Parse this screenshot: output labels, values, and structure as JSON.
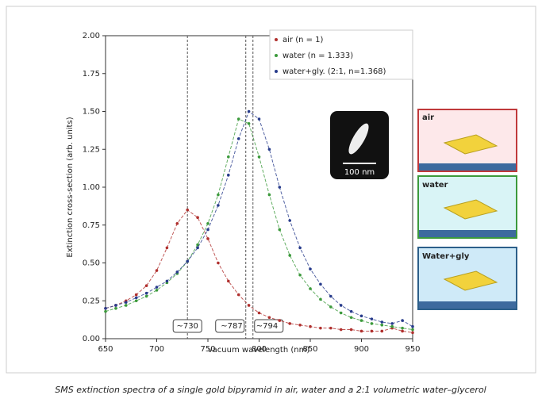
{
  "chart_data": {
    "type": "scatter",
    "xlabel": "vacuum wavelength (nm)",
    "ylabel": "Extinction cross-section (arb. units)",
    "x": [
      650,
      660,
      670,
      680,
      690,
      700,
      710,
      720,
      730,
      740,
      750,
      760,
      770,
      780,
      790,
      800,
      810,
      820,
      830,
      840,
      850,
      860,
      870,
      880,
      890,
      900,
      910,
      920,
      930,
      940,
      950
    ],
    "series": [
      {
        "name": "air (n = 1)",
        "color": "#b0302e",
        "values": [
          0.2,
          0.22,
          0.25,
          0.29,
          0.35,
          0.45,
          0.6,
          0.76,
          0.85,
          0.8,
          0.66,
          0.5,
          0.38,
          0.29,
          0.22,
          0.17,
          0.14,
          0.12,
          0.1,
          0.09,
          0.08,
          0.07,
          0.07,
          0.06,
          0.06,
          0.05,
          0.05,
          0.05,
          0.07,
          0.05,
          0.04
        ]
      },
      {
        "name": "water (n = 1.333)",
        "color": "#3c9a3c",
        "values": [
          0.18,
          0.2,
          0.22,
          0.25,
          0.28,
          0.32,
          0.37,
          0.43,
          0.51,
          0.62,
          0.76,
          0.95,
          1.2,
          1.45,
          1.42,
          1.2,
          0.95,
          0.72,
          0.55,
          0.42,
          0.33,
          0.26,
          0.21,
          0.17,
          0.14,
          0.12,
          0.1,
          0.09,
          0.08,
          0.07,
          0.06
        ]
      },
      {
        "name": "water+gly. (2:1, n=1.368)",
        "color": "#283c8c",
        "values": [
          0.2,
          0.22,
          0.24,
          0.27,
          0.3,
          0.34,
          0.38,
          0.44,
          0.51,
          0.6,
          0.72,
          0.88,
          1.08,
          1.32,
          1.5,
          1.45,
          1.25,
          1.0,
          0.78,
          0.6,
          0.46,
          0.36,
          0.28,
          0.22,
          0.18,
          0.15,
          0.13,
          0.11,
          0.1,
          0.12,
          0.08
        ]
      }
    ],
    "vlines": [
      {
        "value": 730,
        "label": "~730"
      },
      {
        "value": 787,
        "label": "~787"
      },
      {
        "value": 794,
        "label": "~794"
      }
    ],
    "xlim": [
      650,
      950
    ],
    "xticks": [
      650,
      700,
      750,
      800,
      850,
      900,
      950
    ],
    "ylim": [
      0,
      2
    ],
    "yticks": [
      {
        "value": 0,
        "label": "0.00"
      },
      {
        "value": 0.25,
        "label": "0.25"
      },
      {
        "value": 0.5,
        "label": "0.50"
      },
      {
        "value": 0.75,
        "label": "0.75"
      },
      {
        "value": 1,
        "label": "1.00"
      },
      {
        "value": 1.25,
        "label": "1.25"
      },
      {
        "value": 1.5,
        "label": "1.50"
      },
      {
        "value": 1.75,
        "label": "1.75"
      },
      {
        "value": 2,
        "label": "2.00"
      }
    ],
    "legend": "upper right"
  },
  "inset": {
    "scale_label": "100 nm"
  },
  "panels": [
    {
      "label": "air"
    },
    {
      "label": "water"
    },
    {
      "label": "Water+gly"
    }
  ],
  "caption": "SMS extinction spectra of a single gold bipyramid in air, water and a 2:1 volumetric water–glycerol"
}
